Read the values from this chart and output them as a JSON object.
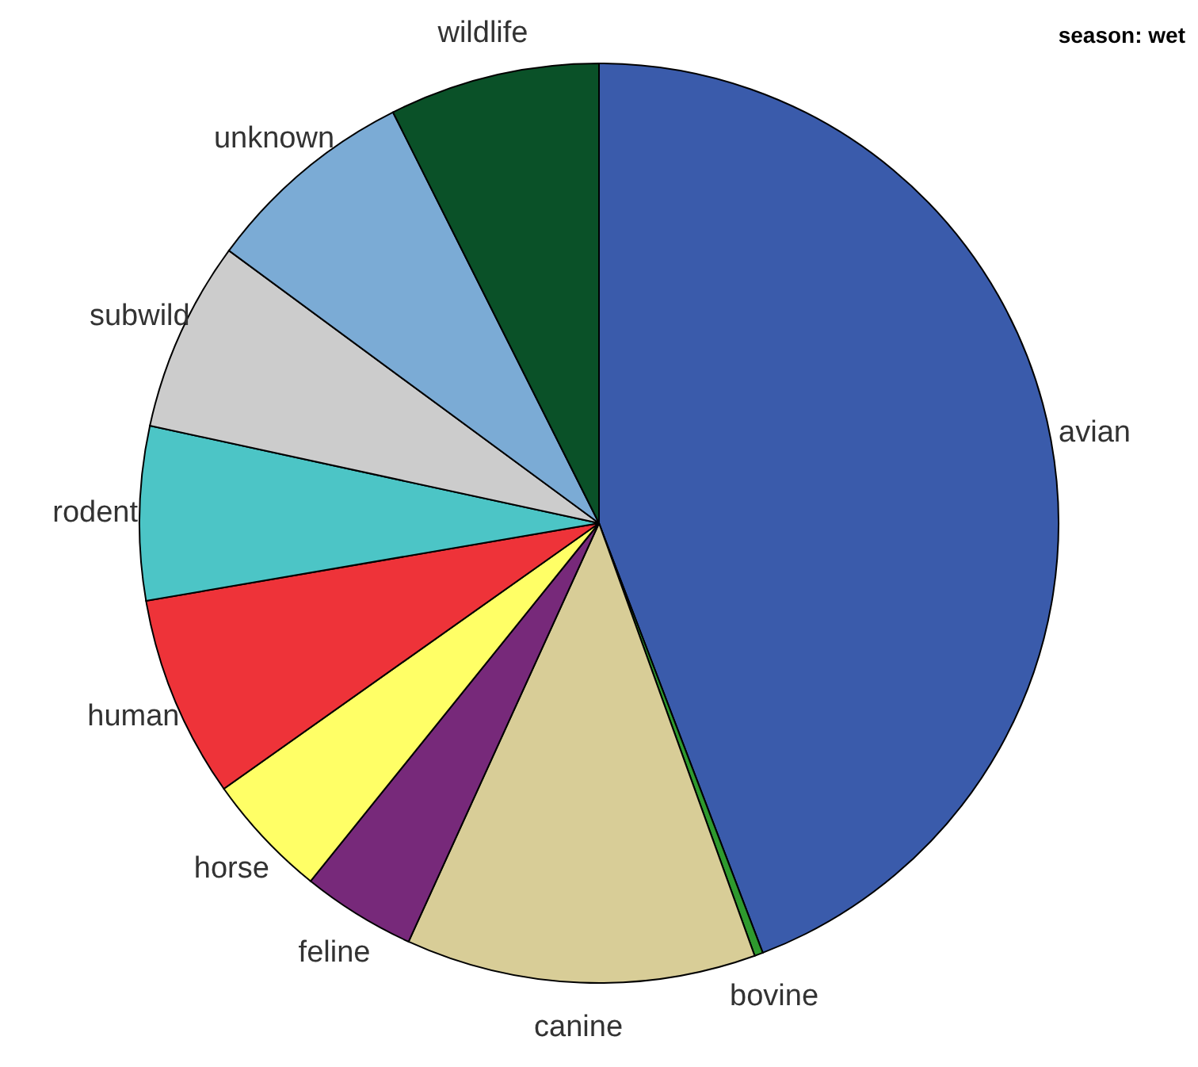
{
  "chart_data": {
    "type": "pie",
    "title": "season: wet",
    "categories": [
      "avian",
      "bovine",
      "canine",
      "feline",
      "horse",
      "human",
      "rodent",
      "subwild",
      "unknown",
      "wildlife"
    ],
    "values": [
      44.2,
      0.3,
      12.3,
      4.0,
      4.4,
      7.1,
      6.1,
      6.7,
      7.5,
      7.4
    ],
    "colors": [
      "#3a5bab",
      "#2e9a2e",
      "#d8cd97",
      "#77297a",
      "#ffff66",
      "#ee3339",
      "#4cc5c6",
      "#cccccc",
      "#7babd5",
      "#0a5128"
    ]
  }
}
